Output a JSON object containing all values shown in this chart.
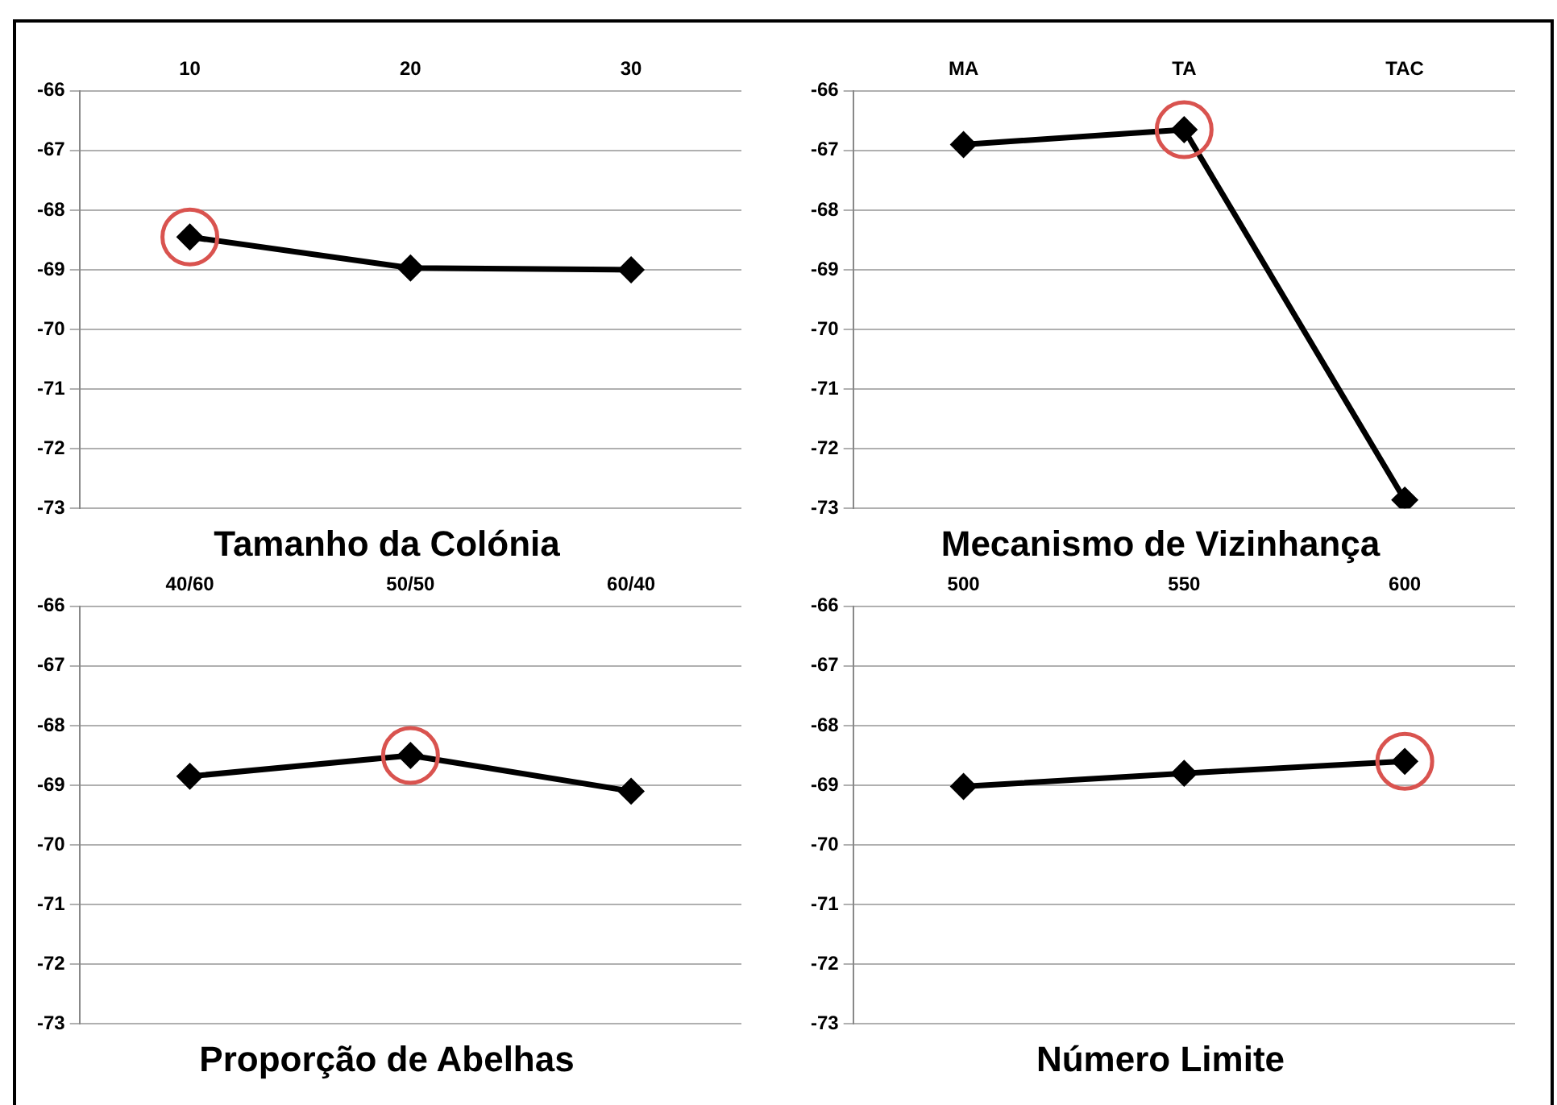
{
  "chart_data": [
    {
      "type": "line",
      "title": "Tamanho da Colónia",
      "categories": [
        "10",
        "20",
        "30"
      ],
      "series": [
        {
          "color": "#000000",
          "values": [
            -68.45,
            -68.97,
            -69.0
          ]
        }
      ],
      "ylim": [
        -73,
        -66
      ],
      "yticks": [
        -73,
        -72,
        -71,
        -70,
        -69,
        -68,
        -67,
        -66
      ],
      "grid": "y",
      "marker": "diamond",
      "legend": false
    },
    {
      "type": "line",
      "title": "Mecanismo de Vizinhança",
      "categories": [
        "MA",
        "TA",
        "TAC"
      ],
      "series": [
        {
          "color": "#000000",
          "values": [
            -66.9,
            -66.65,
            -72.86
          ]
        }
      ],
      "ylim": [
        -73,
        -66
      ],
      "yticks": [
        -73,
        -72,
        -71,
        -70,
        -69,
        -68,
        -67,
        -66
      ],
      "grid": "y",
      "marker": "diamond",
      "legend": false
    },
    {
      "type": "line",
      "title": "Proporção de Abelhas",
      "categories": [
        "40/60",
        "50/50",
        "60/40"
      ],
      "series": [
        {
          "color": "#000000",
          "values": [
            -68.85,
            -68.5,
            -69.1
          ]
        }
      ],
      "ylim": [
        -73,
        -66
      ],
      "yticks": [
        -73,
        -72,
        -71,
        -70,
        -69,
        -68,
        -67,
        -66
      ],
      "grid": "y",
      "marker": "diamond",
      "legend": false
    },
    {
      "type": "line",
      "title": "Número Limite",
      "categories": [
        "500",
        "550",
        "600"
      ],
      "series": [
        {
          "color": "#000000",
          "values": [
            -69.02,
            -68.8,
            -68.6
          ]
        }
      ],
      "ylim": [
        -73,
        -66
      ],
      "yticks": [
        -73,
        -72,
        -71,
        -70,
        -69,
        -68,
        -67,
        -66
      ],
      "grid": "y",
      "marker": "diamond",
      "legend": false
    }
  ]
}
